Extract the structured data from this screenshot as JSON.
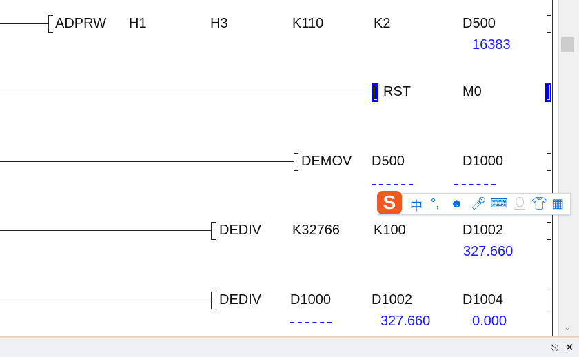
{
  "rungs": [
    {
      "instruction": "ADPRW",
      "operands": [
        "H1",
        "H3",
        "K110",
        "K2",
        "D500"
      ],
      "values": {
        "D500": "16383"
      }
    },
    {
      "instruction": "RST",
      "operands": [
        "M0"
      ]
    },
    {
      "instruction": "DEMOV",
      "operands": [
        "D500",
        "D1000"
      ],
      "values": {
        "D500": "--------",
        "D1000": "--------"
      }
    },
    {
      "instruction": "DEDIV",
      "operands": [
        "K32766",
        "K100",
        "D1002"
      ],
      "values": {
        "D1002": "327.660"
      }
    },
    {
      "instruction": "DEDIV",
      "operands": [
        "D1000",
        "D1002",
        "D1004"
      ],
      "values": {
        "D1000": "--------",
        "D1002": "327.660",
        "D1004": "0.000"
      }
    }
  ],
  "ime_toolbar": {
    "mode": "中",
    "punct": "°,"
  },
  "colors": {
    "monitor_value": "#1a1aff",
    "highlight": "#0000ee"
  }
}
